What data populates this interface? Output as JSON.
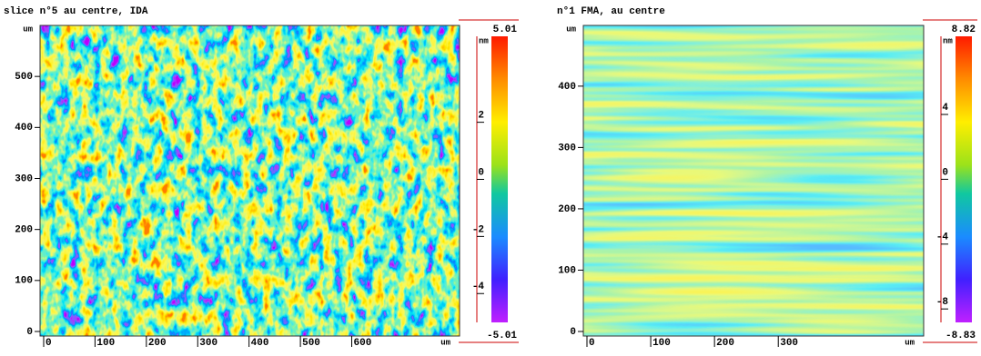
{
  "panels": [
    {
      "title": "slice n°5 au centre, IDA",
      "x_unit": "um",
      "y_unit": "um",
      "xlim": [
        0,
        810
      ],
      "ylim": [
        0,
        600
      ],
      "xticks": [
        0,
        100,
        200,
        300,
        400,
        500,
        600
      ],
      "yticks": [
        0,
        100,
        200,
        300,
        400,
        500
      ],
      "colorbar": {
        "unit": "nm",
        "lim": [
          -5.01,
          5.01
        ],
        "ticks": [
          -4,
          -2,
          0,
          2
        ]
      }
    },
    {
      "title": "n°1 FMA, au centre",
      "x_unit": "um",
      "y_unit": "um",
      "xlim": [
        0,
        528
      ],
      "ylim": [
        0,
        499
      ],
      "xticks": [
        0,
        100,
        200,
        300
      ],
      "yticks": [
        0,
        100,
        200,
        300,
        400
      ],
      "colorbar": {
        "unit": "nm",
        "lim": [
          -8.83,
          8.82
        ],
        "ticks": [
          -8,
          -4,
          0,
          4
        ]
      }
    }
  ]
}
